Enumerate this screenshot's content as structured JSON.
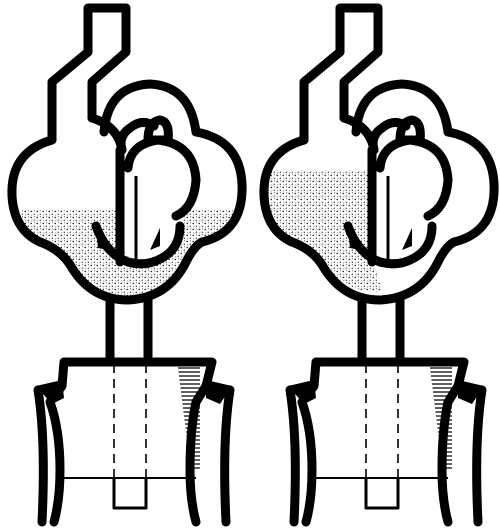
{
  "figure": {
    "panels": [
      {
        "id": "left",
        "liquid_state": "settled-bottom-both-bulbs"
      },
      {
        "id": "right",
        "liquid_state": "left-bulb-upper"
      }
    ],
    "colors": {
      "ink": "#000000",
      "background": "#ffffff",
      "stipple": "#000000"
    }
  }
}
